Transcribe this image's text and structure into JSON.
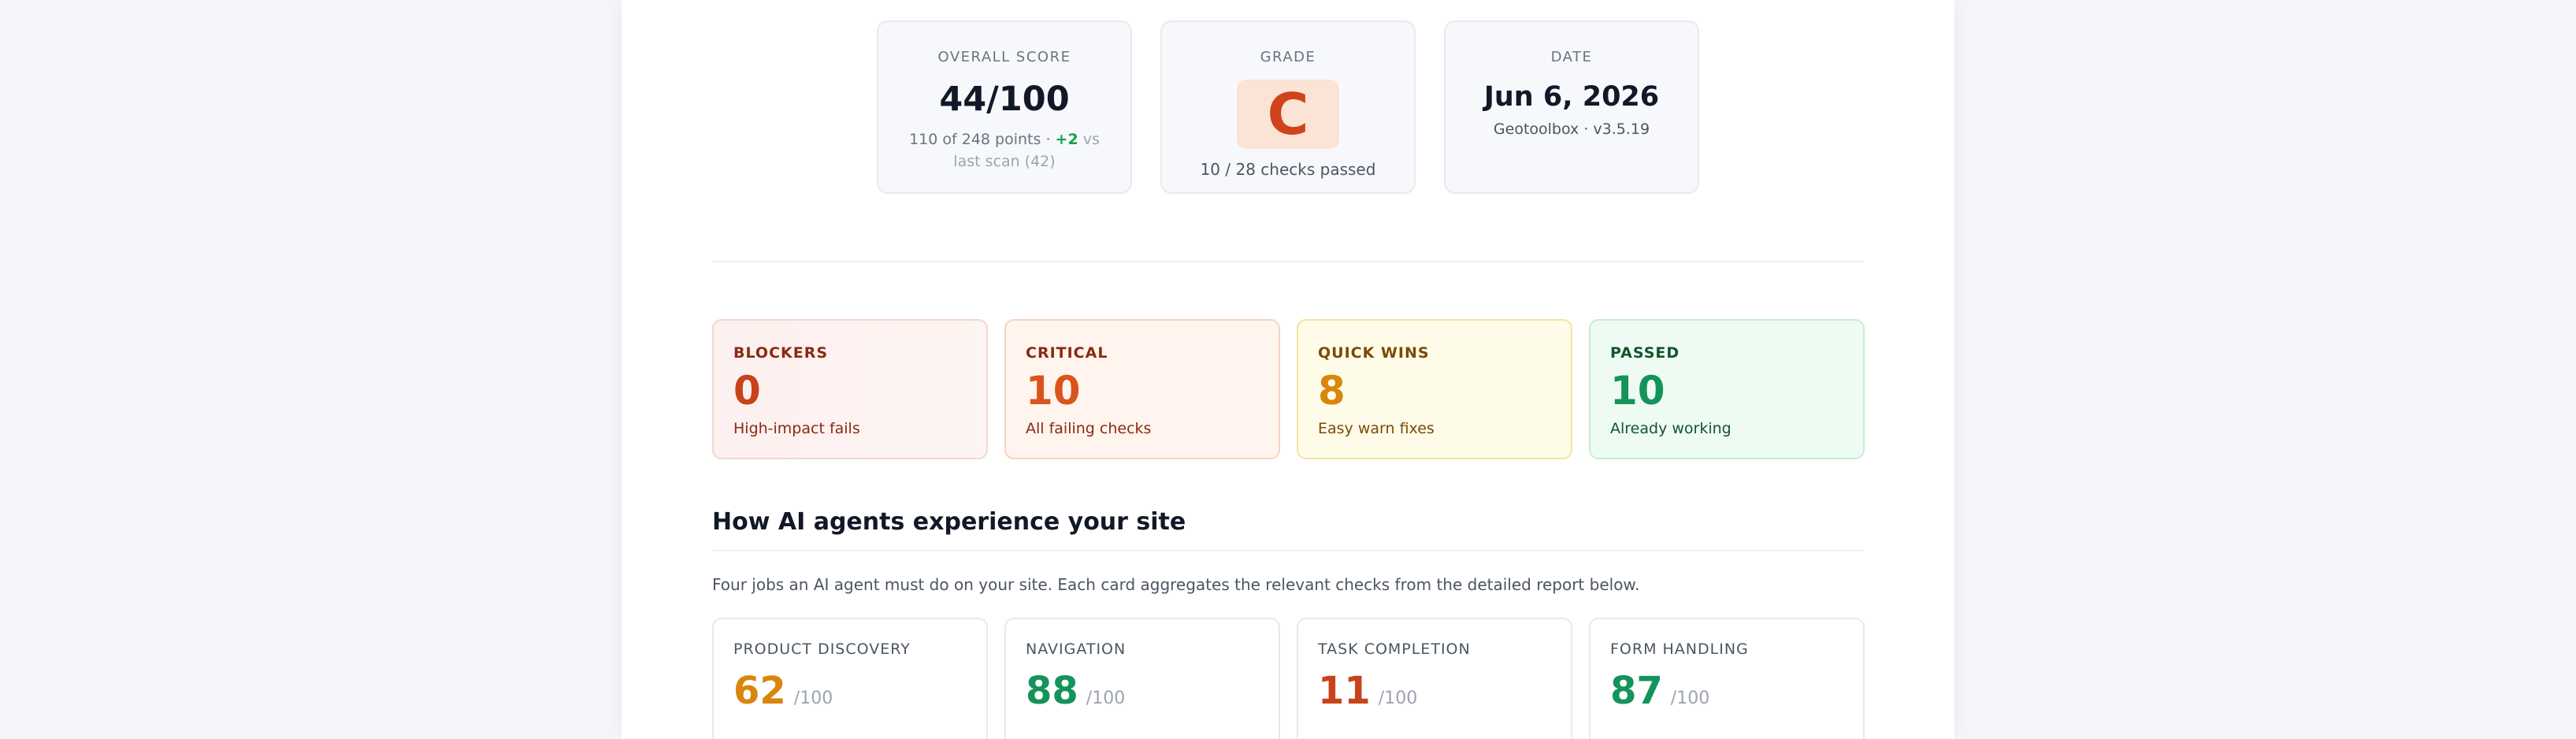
{
  "summary": {
    "overall": {
      "label": "OVERALL SCORE",
      "value": "44/100",
      "points": "110 of 248 points ·",
      "delta": "+2",
      "delta_suffix": "vs last scan (42)"
    },
    "grade": {
      "label": "GRADE",
      "letter": "C",
      "checks": "10 / 28 checks passed"
    },
    "date": {
      "label": "DATE",
      "value": "Jun 6, 2026",
      "tool": "Geotoolbox · v3.5.19"
    }
  },
  "stats": [
    {
      "label": "BLOCKERS",
      "value": "0",
      "description": "High-impact fails"
    },
    {
      "label": "CRITICAL",
      "value": "10",
      "description": "All failing checks"
    },
    {
      "label": "QUICK WINS",
      "value": "8",
      "description": "Easy warn fixes"
    },
    {
      "label": "PASSED",
      "value": "10",
      "description": "Already working"
    }
  ],
  "agents_section": {
    "title": "How AI agents experience your site",
    "description": "Four jobs an AI agent must do on your site. Each card aggregates the relevant checks from the detailed report below.",
    "cards": [
      {
        "label": "PRODUCT DISCOVERY",
        "score": "62",
        "max": "/100",
        "color": "#d9860b"
      },
      {
        "label": "NAVIGATION",
        "score": "88",
        "max": "/100",
        "color": "#15935a"
      },
      {
        "label": "TASK COMPLETION",
        "score": "11",
        "max": "/100",
        "color": "#c9421b"
      },
      {
        "label": "FORM HANDLING",
        "score": "87",
        "max": "/100",
        "color": "#15935a"
      }
    ]
  }
}
